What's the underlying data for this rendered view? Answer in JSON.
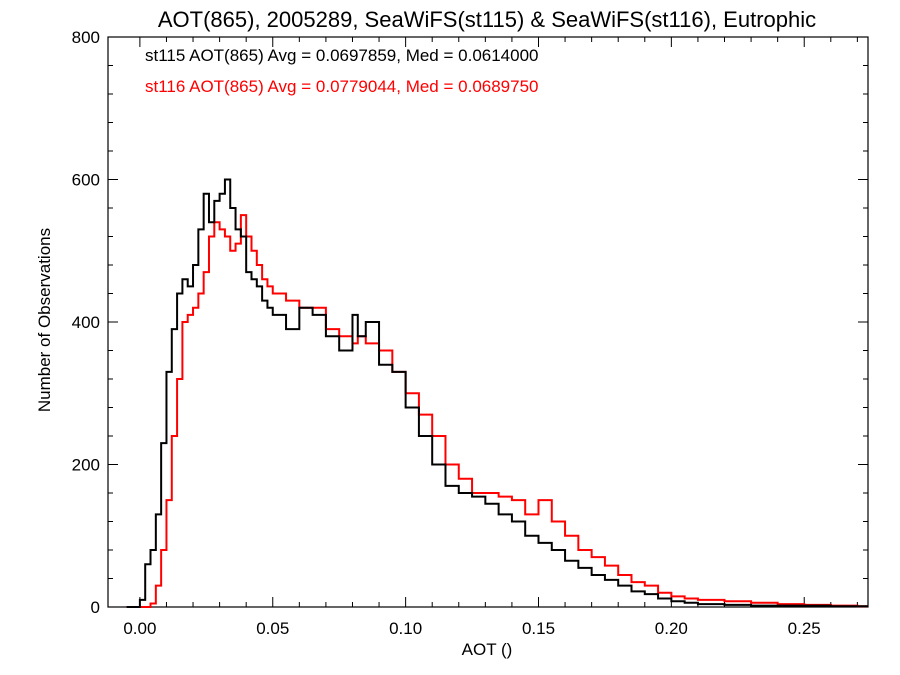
{
  "chart_data": {
    "type": "line",
    "step": true,
    "title": "AOT(865), 2005289, SeaWiFS(st115) & SeaWiFS(st116), Eutrophic",
    "xlabel": "AOT ()",
    "ylabel": "Number of Observations",
    "xlim": [
      -0.012,
      0.274
    ],
    "ylim": [
      0,
      800
    ],
    "xticks": [
      0.0,
      0.05,
      0.1,
      0.15,
      0.2,
      0.25
    ],
    "xtick_labels": [
      "0.00",
      "0.05",
      "0.10",
      "0.15",
      "0.20",
      "0.25"
    ],
    "yticks": [
      0,
      200,
      400,
      600,
      800
    ],
    "ytick_labels": [
      "0",
      "200",
      "400",
      "600",
      "800"
    ],
    "grid": false,
    "annotations": [
      {
        "text": "st115 AOT(865) Avg = 0.0697859, Med = 0.0614000",
        "color": "#000000"
      },
      {
        "text": "st116 AOT(865) Avg = 0.0779044, Med = 0.0689750",
        "color": "#ff0000"
      }
    ],
    "series": [
      {
        "color": "#000000",
        "x": [
          -0.005,
          0.0,
          0.002,
          0.004,
          0.006,
          0.008,
          0.01,
          0.012,
          0.014,
          0.016,
          0.018,
          0.02,
          0.022,
          0.024,
          0.026,
          0.028,
          0.03,
          0.032,
          0.034,
          0.036,
          0.038,
          0.04,
          0.042,
          0.044,
          0.046,
          0.048,
          0.05,
          0.055,
          0.06,
          0.065,
          0.07,
          0.075,
          0.08,
          0.082,
          0.085,
          0.09,
          0.095,
          0.1,
          0.105,
          0.11,
          0.115,
          0.12,
          0.125,
          0.13,
          0.135,
          0.14,
          0.145,
          0.15,
          0.155,
          0.16,
          0.165,
          0.17,
          0.175,
          0.18,
          0.185,
          0.19,
          0.195,
          0.2,
          0.205,
          0.21,
          0.22,
          0.23,
          0.24,
          0.25,
          0.26,
          0.27
        ],
        "y": [
          0,
          10,
          60,
          80,
          130,
          230,
          330,
          390,
          440,
          460,
          450,
          480,
          530,
          580,
          540,
          570,
          580,
          600,
          560,
          530,
          520,
          470,
          460,
          450,
          430,
          420,
          410,
          390,
          420,
          410,
          380,
          360,
          410,
          380,
          400,
          340,
          330,
          280,
          240,
          200,
          170,
          160,
          155,
          145,
          130,
          120,
          100,
          90,
          80,
          65,
          55,
          45,
          38,
          30,
          22,
          18,
          12,
          8,
          6,
          4,
          3,
          2,
          2,
          2,
          1,
          1
        ]
      },
      {
        "color": "#ff0000",
        "x": [
          -0.005,
          0.0,
          0.002,
          0.004,
          0.006,
          0.008,
          0.01,
          0.012,
          0.014,
          0.016,
          0.018,
          0.02,
          0.022,
          0.024,
          0.026,
          0.028,
          0.03,
          0.032,
          0.034,
          0.036,
          0.038,
          0.04,
          0.042,
          0.044,
          0.046,
          0.048,
          0.05,
          0.055,
          0.06,
          0.065,
          0.07,
          0.075,
          0.08,
          0.082,
          0.085,
          0.09,
          0.095,
          0.1,
          0.105,
          0.11,
          0.115,
          0.12,
          0.125,
          0.13,
          0.135,
          0.14,
          0.145,
          0.15,
          0.155,
          0.16,
          0.165,
          0.17,
          0.175,
          0.18,
          0.185,
          0.19,
          0.195,
          0.2,
          0.205,
          0.21,
          0.22,
          0.23,
          0.24,
          0.25,
          0.26,
          0.27
        ],
        "y": [
          0,
          0,
          0,
          5,
          30,
          80,
          150,
          240,
          320,
          400,
          410,
          420,
          440,
          470,
          520,
          540,
          530,
          520,
          500,
          510,
          550,
          520,
          500,
          480,
          460,
          450,
          440,
          430,
          420,
          420,
          390,
          380,
          370,
          380,
          370,
          360,
          330,
          300,
          270,
          240,
          200,
          180,
          160,
          160,
          155,
          150,
          130,
          150,
          120,
          100,
          80,
          70,
          58,
          45,
          35,
          30,
          20,
          15,
          12,
          10,
          8,
          6,
          4,
          3,
          2,
          1
        ]
      }
    ]
  }
}
